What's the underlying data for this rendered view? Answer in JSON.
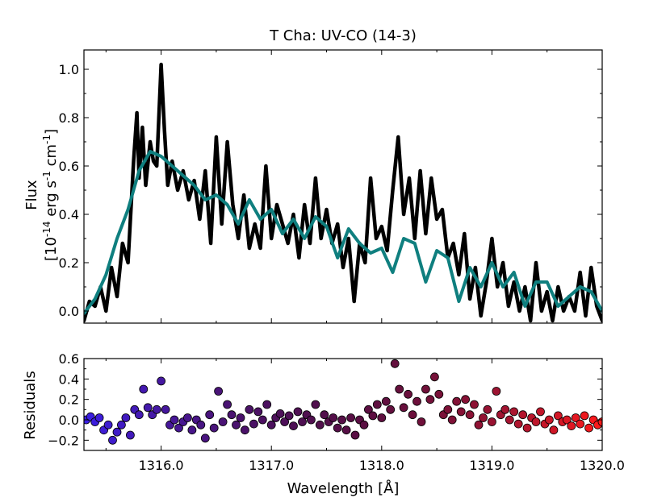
{
  "chart_data": [
    {
      "type": "line",
      "title": "T Cha: UV-CO (14-3)",
      "ylabel_line1": "Flux",
      "ylabel_line2": "[10-14 erg s-1 cm-1]",
      "xlim": [
        1315.3,
        1320.0
      ],
      "ylim": [
        -0.05,
        1.08
      ],
      "yticks": [
        0.0,
        0.2,
        0.4,
        0.6,
        0.8,
        1.0
      ],
      "ytick_labels": [
        "0.0",
        "0.2",
        "0.4",
        "0.6",
        "0.8",
        "1.0"
      ],
      "series": [
        {
          "role": "observed",
          "color": "#000000",
          "points": [
            [
              1315.3,
              -0.04
            ],
            [
              1315.35,
              0.04
            ],
            [
              1315.4,
              0.02
            ],
            [
              1315.45,
              0.1
            ],
            [
              1315.5,
              0.0
            ],
            [
              1315.55,
              0.18
            ],
            [
              1315.6,
              0.06
            ],
            [
              1315.65,
              0.28
            ],
            [
              1315.7,
              0.2
            ],
            [
              1315.75,
              0.62
            ],
            [
              1315.78,
              0.82
            ],
            [
              1315.8,
              0.55
            ],
            [
              1315.83,
              0.76
            ],
            [
              1315.86,
              0.52
            ],
            [
              1315.9,
              0.7
            ],
            [
              1315.93,
              0.62
            ],
            [
              1315.96,
              0.6
            ],
            [
              1316.0,
              1.02
            ],
            [
              1316.03,
              0.75
            ],
            [
              1316.06,
              0.52
            ],
            [
              1316.1,
              0.62
            ],
            [
              1316.15,
              0.5
            ],
            [
              1316.2,
              0.58
            ],
            [
              1316.25,
              0.46
            ],
            [
              1316.3,
              0.54
            ],
            [
              1316.35,
              0.38
            ],
            [
              1316.4,
              0.58
            ],
            [
              1316.45,
              0.28
            ],
            [
              1316.5,
              0.72
            ],
            [
              1316.55,
              0.36
            ],
            [
              1316.6,
              0.7
            ],
            [
              1316.65,
              0.44
            ],
            [
              1316.7,
              0.3
            ],
            [
              1316.75,
              0.48
            ],
            [
              1316.8,
              0.26
            ],
            [
              1316.85,
              0.36
            ],
            [
              1316.9,
              0.26
            ],
            [
              1316.95,
              0.6
            ],
            [
              1317.0,
              0.3
            ],
            [
              1317.05,
              0.44
            ],
            [
              1317.1,
              0.36
            ],
            [
              1317.15,
              0.28
            ],
            [
              1317.2,
              0.4
            ],
            [
              1317.25,
              0.22
            ],
            [
              1317.3,
              0.44
            ],
            [
              1317.35,
              0.28
            ],
            [
              1317.4,
              0.55
            ],
            [
              1317.45,
              0.3
            ],
            [
              1317.5,
              0.42
            ],
            [
              1317.55,
              0.28
            ],
            [
              1317.6,
              0.36
            ],
            [
              1317.65,
              0.18
            ],
            [
              1317.7,
              0.3
            ],
            [
              1317.75,
              0.04
            ],
            [
              1317.8,
              0.28
            ],
            [
              1317.85,
              0.2
            ],
            [
              1317.9,
              0.55
            ],
            [
              1317.95,
              0.3
            ],
            [
              1318.0,
              0.35
            ],
            [
              1318.05,
              0.25
            ],
            [
              1318.1,
              0.5
            ],
            [
              1318.15,
              0.72
            ],
            [
              1318.2,
              0.4
            ],
            [
              1318.25,
              0.55
            ],
            [
              1318.3,
              0.3
            ],
            [
              1318.35,
              0.58
            ],
            [
              1318.4,
              0.32
            ],
            [
              1318.45,
              0.55
            ],
            [
              1318.5,
              0.38
            ],
            [
              1318.55,
              0.42
            ],
            [
              1318.6,
              0.22
            ],
            [
              1318.65,
              0.28
            ],
            [
              1318.7,
              0.15
            ],
            [
              1318.75,
              0.32
            ],
            [
              1318.8,
              0.05
            ],
            [
              1318.85,
              0.18
            ],
            [
              1318.9,
              -0.02
            ],
            [
              1318.95,
              0.12
            ],
            [
              1319.0,
              0.3
            ],
            [
              1319.05,
              0.1
            ],
            [
              1319.1,
              0.2
            ],
            [
              1319.15,
              0.02
            ],
            [
              1319.2,
              0.12
            ],
            [
              1319.25,
              0.0
            ],
            [
              1319.3,
              0.1
            ],
            [
              1319.35,
              -0.04
            ],
            [
              1319.4,
              0.2
            ],
            [
              1319.45,
              0.0
            ],
            [
              1319.5,
              0.08
            ],
            [
              1319.55,
              -0.04
            ],
            [
              1319.6,
              0.1
            ],
            [
              1319.65,
              0.0
            ],
            [
              1319.7,
              0.06
            ],
            [
              1319.75,
              0.0
            ],
            [
              1319.8,
              0.16
            ],
            [
              1319.85,
              -0.02
            ],
            [
              1319.9,
              0.18
            ],
            [
              1319.95,
              0.02
            ],
            [
              1320.0,
              -0.04
            ]
          ]
        },
        {
          "role": "model",
          "color": "#0f7f7f",
          "points": [
            [
              1315.3,
              -0.01
            ],
            [
              1315.4,
              0.05
            ],
            [
              1315.5,
              0.15
            ],
            [
              1315.6,
              0.3
            ],
            [
              1315.7,
              0.42
            ],
            [
              1315.8,
              0.58
            ],
            [
              1315.9,
              0.66
            ],
            [
              1316.0,
              0.64
            ],
            [
              1316.1,
              0.6
            ],
            [
              1316.2,
              0.56
            ],
            [
              1316.3,
              0.52
            ],
            [
              1316.4,
              0.46
            ],
            [
              1316.5,
              0.48
            ],
            [
              1316.6,
              0.44
            ],
            [
              1316.7,
              0.36
            ],
            [
              1316.8,
              0.46
            ],
            [
              1316.9,
              0.38
            ],
            [
              1317.0,
              0.42
            ],
            [
              1317.1,
              0.32
            ],
            [
              1317.2,
              0.38
            ],
            [
              1317.3,
              0.3
            ],
            [
              1317.4,
              0.39
            ],
            [
              1317.5,
              0.35
            ],
            [
              1317.6,
              0.22
            ],
            [
              1317.7,
              0.34
            ],
            [
              1317.8,
              0.28
            ],
            [
              1317.9,
              0.24
            ],
            [
              1318.0,
              0.26
            ],
            [
              1318.1,
              0.16
            ],
            [
              1318.2,
              0.3
            ],
            [
              1318.3,
              0.28
            ],
            [
              1318.4,
              0.12
            ],
            [
              1318.5,
              0.25
            ],
            [
              1318.6,
              0.22
            ],
            [
              1318.7,
              0.04
            ],
            [
              1318.8,
              0.18
            ],
            [
              1318.9,
              0.1
            ],
            [
              1319.0,
              0.2
            ],
            [
              1319.1,
              0.1
            ],
            [
              1319.2,
              0.16
            ],
            [
              1319.3,
              0.02
            ],
            [
              1319.4,
              0.12
            ],
            [
              1319.5,
              0.12
            ],
            [
              1319.6,
              0.02
            ],
            [
              1319.7,
              0.06
            ],
            [
              1319.8,
              0.1
            ],
            [
              1319.9,
              0.08
            ],
            [
              1320.0,
              0.0
            ]
          ]
        }
      ]
    },
    {
      "type": "scatter",
      "xlabel": "Wavelength [Å]",
      "ylabel": "Residuals",
      "xlim": [
        1315.3,
        1320.0
      ],
      "ylim": [
        -0.3,
        0.6
      ],
      "xticks": [
        1316.0,
        1317.0,
        1318.0,
        1319.0,
        1320.0
      ],
      "xtick_labels": [
        "1316.0",
        "1317.0",
        "1318.0",
        "1319.0",
        "1320.0"
      ],
      "yticks": [
        -0.2,
        0.0,
        0.2,
        0.4,
        0.6
      ],
      "ytick_labels": [
        "−0.2",
        "0.0",
        "0.2",
        "0.4",
        "0.6"
      ],
      "color_start": "#3a1ee6",
      "color_end": "#ff1a1a",
      "points": [
        [
          1315.32,
          0.0
        ],
        [
          1315.36,
          0.03
        ],
        [
          1315.4,
          -0.02
        ],
        [
          1315.44,
          0.02
        ],
        [
          1315.48,
          -0.1
        ],
        [
          1315.52,
          -0.05
        ],
        [
          1315.56,
          -0.2
        ],
        [
          1315.6,
          -0.12
        ],
        [
          1315.64,
          -0.05
        ],
        [
          1315.68,
          0.02
        ],
        [
          1315.72,
          -0.15
        ],
        [
          1315.76,
          0.1
        ],
        [
          1315.8,
          0.05
        ],
        [
          1315.84,
          0.3
        ],
        [
          1315.88,
          0.12
        ],
        [
          1315.92,
          0.05
        ],
        [
          1315.96,
          0.1
        ],
        [
          1316.0,
          0.38
        ],
        [
          1316.04,
          0.1
        ],
        [
          1316.08,
          -0.05
        ],
        [
          1316.12,
          0.0
        ],
        [
          1316.16,
          -0.08
        ],
        [
          1316.2,
          -0.02
        ],
        [
          1316.24,
          0.02
        ],
        [
          1316.28,
          -0.1
        ],
        [
          1316.32,
          0.0
        ],
        [
          1316.36,
          -0.05
        ],
        [
          1316.4,
          -0.18
        ],
        [
          1316.44,
          0.05
        ],
        [
          1316.48,
          -0.08
        ],
        [
          1316.52,
          0.28
        ],
        [
          1316.56,
          -0.02
        ],
        [
          1316.6,
          0.15
        ],
        [
          1316.64,
          0.05
        ],
        [
          1316.68,
          -0.05
        ],
        [
          1316.72,
          0.02
        ],
        [
          1316.76,
          -0.1
        ],
        [
          1316.8,
          0.1
        ],
        [
          1316.84,
          -0.04
        ],
        [
          1316.88,
          0.08
        ],
        [
          1316.92,
          0.0
        ],
        [
          1316.96,
          0.15
        ],
        [
          1317.0,
          -0.05
        ],
        [
          1317.04,
          0.02
        ],
        [
          1317.08,
          0.06
        ],
        [
          1317.12,
          -0.02
        ],
        [
          1317.16,
          0.04
        ],
        [
          1317.2,
          -0.06
        ],
        [
          1317.24,
          0.08
        ],
        [
          1317.28,
          -0.02
        ],
        [
          1317.32,
          0.05
        ],
        [
          1317.36,
          0.0
        ],
        [
          1317.4,
          0.15
        ],
        [
          1317.44,
          -0.05
        ],
        [
          1317.48,
          0.05
        ],
        [
          1317.52,
          -0.02
        ],
        [
          1317.56,
          0.02
        ],
        [
          1317.6,
          -0.08
        ],
        [
          1317.64,
          0.0
        ],
        [
          1317.68,
          -0.1
        ],
        [
          1317.72,
          0.02
        ],
        [
          1317.76,
          -0.15
        ],
        [
          1317.8,
          0.0
        ],
        [
          1317.84,
          -0.05
        ],
        [
          1317.88,
          0.1
        ],
        [
          1317.92,
          0.04
        ],
        [
          1317.96,
          0.15
        ],
        [
          1318.0,
          0.02
        ],
        [
          1318.04,
          0.18
        ],
        [
          1318.08,
          0.1
        ],
        [
          1318.12,
          0.55
        ],
        [
          1318.16,
          0.3
        ],
        [
          1318.2,
          0.12
        ],
        [
          1318.24,
          0.25
        ],
        [
          1318.28,
          0.05
        ],
        [
          1318.32,
          0.18
        ],
        [
          1318.36,
          -0.02
        ],
        [
          1318.4,
          0.3
        ],
        [
          1318.44,
          0.2
        ],
        [
          1318.48,
          0.42
        ],
        [
          1318.52,
          0.25
        ],
        [
          1318.56,
          0.05
        ],
        [
          1318.6,
          0.1
        ],
        [
          1318.64,
          0.0
        ],
        [
          1318.68,
          0.18
        ],
        [
          1318.72,
          0.08
        ],
        [
          1318.76,
          0.2
        ],
        [
          1318.8,
          0.05
        ],
        [
          1318.84,
          0.15
        ],
        [
          1318.88,
          -0.05
        ],
        [
          1318.92,
          0.02
        ],
        [
          1318.96,
          0.1
        ],
        [
          1319.0,
          -0.02
        ],
        [
          1319.04,
          0.28
        ],
        [
          1319.08,
          0.05
        ],
        [
          1319.12,
          0.1
        ],
        [
          1319.16,
          0.0
        ],
        [
          1319.2,
          0.08
        ],
        [
          1319.24,
          -0.04
        ],
        [
          1319.28,
          0.05
        ],
        [
          1319.32,
          -0.08
        ],
        [
          1319.36,
          0.02
        ],
        [
          1319.4,
          -0.02
        ],
        [
          1319.44,
          0.08
        ],
        [
          1319.48,
          -0.04
        ],
        [
          1319.52,
          0.0
        ],
        [
          1319.56,
          -0.1
        ],
        [
          1319.6,
          0.04
        ],
        [
          1319.64,
          -0.02
        ],
        [
          1319.68,
          0.0
        ],
        [
          1319.72,
          -0.06
        ],
        [
          1319.76,
          0.02
        ],
        [
          1319.8,
          -0.04
        ],
        [
          1319.84,
          0.04
        ],
        [
          1319.88,
          -0.08
        ],
        [
          1319.92,
          0.0
        ],
        [
          1319.96,
          -0.05
        ],
        [
          1320.0,
          -0.02
        ]
      ]
    }
  ]
}
